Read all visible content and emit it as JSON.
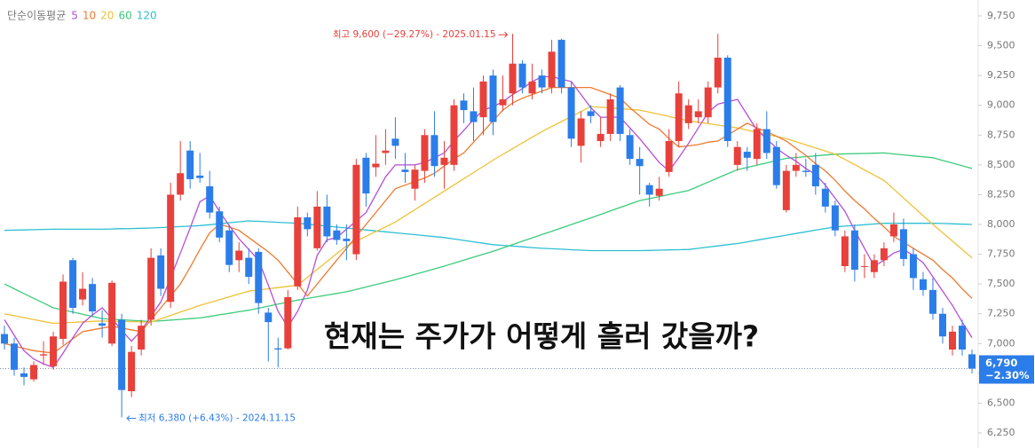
{
  "chart_data": {
    "type": "candlestick",
    "legend_title": "단순이동평균",
    "up_color": "#e8403b",
    "down_color": "#2b7de9",
    "open": [
      7080,
      7000,
      6750,
      6700,
      6900,
      6810,
      7040,
      7700,
      7370,
      7500,
      7170,
      7000,
      7200,
      6600,
      6950,
      7200,
      7740,
      7350,
      8250,
      8620,
      8410,
      8320,
      8110,
      7950,
      7700,
      7720,
      7770,
      7260,
      6960,
      6960,
      7480,
      8060,
      7800,
      8150,
      7950,
      7880,
      7750,
      8560,
      8480,
      8600,
      8720,
      8460,
      8300,
      8450,
      8750,
      8500,
      8500,
      9040,
      8950,
      8900,
      9250,
      9000,
      9100,
      9350,
      9100,
      9250,
      9150,
      9550,
      9150,
      8660,
      8950,
      8700,
      8760,
      9150,
      8750,
      8550,
      8330,
      8240,
      8440,
      8700,
      8850,
      8900,
      8900,
      9150,
      9400,
      8500,
      8610,
      8550,
      8800,
      8650,
      8120,
      8450,
      8450,
      8500,
      8300,
      8160,
      7650,
      7950,
      7650,
      7600,
      7700,
      7900,
      7960,
      7750,
      7540,
      7450,
      7250,
      6950,
      7150,
      6910
    ],
    "high": [
      7150,
      7050,
      6800,
      6850,
      7020,
      7100,
      7580,
      7720,
      7600,
      7550,
      7280,
      7530,
      7250,
      6980,
      7200,
      7800,
      7800,
      8350,
      8700,
      8700,
      8600,
      8450,
      8150,
      8000,
      7850,
      7800,
      7800,
      7300,
      7050,
      7450,
      8150,
      8100,
      8280,
      8250,
      8000,
      8000,
      8550,
      8600,
      8750,
      8800,
      8900,
      8600,
      8500,
      8800,
      8950,
      8700,
      9050,
      9100,
      9150,
      9250,
      9300,
      9250,
      9600,
      9380,
      9350,
      9300,
      9550,
      9560,
      9200,
      8950,
      9000,
      8900,
      9100,
      9170,
      8800,
      8650,
      8350,
      8400,
      8800,
      9200,
      9050,
      9050,
      9200,
      9600,
      9420,
      8700,
      8650,
      8850,
      8950,
      8700,
      8500,
      8600,
      8550,
      8600,
      8350,
      8200,
      7950,
      8000,
      7750,
      7750,
      7850,
      8100,
      8050,
      7800,
      7600,
      7550,
      7300,
      7150,
      7200,
      6950
    ],
    "low": [
      6950,
      6730,
      6650,
      6680,
      6820,
      6780,
      6990,
      7250,
      7320,
      7230,
      7050,
      6980,
      6380,
      6550,
      6900,
      7150,
      7400,
      7300,
      8200,
      8300,
      8350,
      8050,
      7850,
      7600,
      7600,
      7500,
      7250,
      6850,
      6800,
      6950,
      7450,
      7900,
      7780,
      7850,
      7830,
      7700,
      7700,
      8150,
      8400,
      8500,
      8550,
      8350,
      8200,
      8350,
      8400,
      8300,
      8450,
      8850,
      8700,
      8750,
      8750,
      8950,
      9000,
      9100,
      9050,
      9100,
      9100,
      9100,
      8650,
      8520,
      8850,
      8650,
      8700,
      8700,
      8500,
      8250,
      8150,
      8200,
      8400,
      8650,
      8800,
      8850,
      8850,
      9100,
      8650,
      8450,
      8450,
      8500,
      8550,
      8300,
      8100,
      8400,
      8400,
      8250,
      8100,
      7900,
      7600,
      7520,
      7550,
      7550,
      7650,
      7850,
      7650,
      7450,
      7400,
      7200,
      7000,
      6900,
      6900,
      6750
    ],
    "close": [
      7000,
      6780,
      6720,
      6820,
      6910,
      7060,
      7520,
      7300,
      7460,
      7270,
      7150,
      7510,
      6610,
      6930,
      7150,
      7720,
      7460,
      8250,
      8430,
      8380,
      8390,
      8100,
      7890,
      7660,
      7780,
      7560,
      7340,
      7180,
      6950,
      7390,
      8060,
      7960,
      8150,
      7900,
      7870,
      7860,
      8500,
      8260,
      8510,
      8620,
      8660,
      8440,
      8460,
      8750,
      8490,
      8560,
      9000,
      8960,
      8860,
      9200,
      8860,
      9050,
      9350,
      9150,
      9200,
      9150,
      9450,
      9150,
      8720,
      8890,
      8910,
      8760,
      9050,
      8760,
      8550,
      8490,
      8250,
      8300,
      8700,
      9100,
      9000,
      8950,
      9150,
      9400,
      8700,
      8650,
      8560,
      8800,
      8600,
      8330,
      8450,
      8500,
      8440,
      8320,
      8150,
      7950,
      7900,
      7620,
      7650,
      7700,
      7800,
      8000,
      7710,
      7550,
      7450,
      7250,
      7060,
      7100,
      6950,
      6790
    ],
    "series": [
      {
        "name": "5",
        "color": "#b44fd6",
        "values": [
          7200,
          7070,
          6940,
          6870,
          6830,
          6800,
          6920,
          7050,
          7170,
          7240,
          7300,
          7210,
          7110,
          7020,
          7110,
          7230,
          7350,
          7550,
          7760,
          7970,
          8190,
          8240,
          8110,
          7990,
          7880,
          7790,
          7700,
          7490,
          7270,
          7140,
          7270,
          7450,
          7740,
          7870,
          7890,
          7960,
          8030,
          8100,
          8250,
          8400,
          8500,
          8500,
          8500,
          8520,
          8560,
          8600,
          8700,
          8790,
          8880,
          8960,
          8990,
          9030,
          9090,
          9140,
          9200,
          9240,
          9240,
          9220,
          9200,
          9090,
          8980,
          8900,
          8900,
          8900,
          8810,
          8720,
          8620,
          8520,
          8450,
          8560,
          8680,
          8810,
          8940,
          9010,
          9030,
          9050,
          8920,
          8790,
          8720,
          8640,
          8580,
          8530,
          8470,
          8420,
          8330,
          8220,
          8110,
          7950,
          7800,
          7650,
          7700,
          7760,
          7790,
          7740,
          7680,
          7560,
          7440,
          7320,
          7180,
          7050
        ]
      },
      {
        "name": "10",
        "color": "#ee7a30",
        "values": [
          7000,
          6980,
          6960,
          6940,
          6930,
          6920,
          6980,
          7040,
          7100,
          7115,
          7130,
          7145,
          7130,
          7115,
          7100,
          7200,
          7300,
          7400,
          7500,
          7640,
          7790,
          7930,
          8000,
          7980,
          7950,
          7890,
          7830,
          7770,
          7700,
          7600,
          7500,
          7400,
          7500,
          7600,
          7700,
          7800,
          7900,
          8000,
          8100,
          8200,
          8300,
          8330,
          8360,
          8390,
          8430,
          8490,
          8550,
          8600,
          8690,
          8780,
          8870,
          8960,
          9020,
          9060,
          9090,
          9120,
          9150,
          9150,
          9150,
          9150,
          9150,
          9120,
          9090,
          9060,
          8980,
          8910,
          8840,
          8800,
          8720,
          8650,
          8660,
          8670,
          8690,
          8700,
          8750,
          8800,
          8850,
          8810,
          8780,
          8740,
          8700,
          8640,
          8580,
          8510,
          8450,
          8370,
          8280,
          8200,
          8130,
          8050,
          7980,
          7900,
          7850,
          7800,
          7750,
          7700,
          7620,
          7550,
          7460,
          7380
        ]
      },
      {
        "name": "20",
        "color": "#ecc238",
        "values": [
          7250,
          7234,
          7218,
          7202,
          7186,
          7170,
          7174,
          7178,
          7182,
          7186,
          7190,
          7188,
          7186,
          7184,
          7182,
          7180,
          7208,
          7236,
          7264,
          7292,
          7320,
          7344,
          7368,
          7392,
          7416,
          7440,
          7450,
          7460,
          7470,
          7480,
          7490,
          7556,
          7622,
          7688,
          7754,
          7820,
          7860,
          7900,
          7940,
          7980,
          8020,
          8072,
          8124,
          8176,
          8228,
          8280,
          8332,
          8384,
          8436,
          8488,
          8540,
          8588,
          8636,
          8684,
          8732,
          8780,
          8822,
          8864,
          8906,
          8948,
          8990,
          8984,
          8978,
          8972,
          8966,
          8960,
          8942,
          8924,
          8906,
          8888,
          8870,
          8858,
          8846,
          8834,
          8822,
          8810,
          8792,
          8774,
          8756,
          8738,
          8720,
          8694,
          8668,
          8642,
          8616,
          8590,
          8546,
          8502,
          8458,
          8414,
          8370,
          8296,
          8222,
          8148,
          8074,
          8000,
          7930,
          7860,
          7790,
          7720
        ]
      },
      {
        "name": "60",
        "color": "#3ccb7c",
        "values": [
          7500,
          7460,
          7420,
          7380,
          7340,
          7300,
          7282,
          7264,
          7246,
          7228,
          7210,
          7205,
          7200,
          7195,
          7190,
          7185,
          7191,
          7197,
          7203,
          7209,
          7215,
          7228,
          7241,
          7254,
          7267,
          7280,
          7297,
          7314,
          7331,
          7348,
          7365,
          7379,
          7393,
          7407,
          7421,
          7435,
          7455,
          7475,
          7495,
          7515,
          7535,
          7558,
          7581,
          7604,
          7627,
          7650,
          7675,
          7700,
          7725,
          7750,
          7775,
          7803,
          7831,
          7859,
          7887,
          7915,
          7943,
          7971,
          7999,
          8027,
          8055,
          8084,
          8113,
          8142,
          8171,
          8200,
          8217,
          8234,
          8251,
          8268,
          8285,
          8320,
          8355,
          8390,
          8425,
          8460,
          8479,
          8498,
          8517,
          8536,
          8555,
          8562,
          8569,
          8576,
          8583,
          8590,
          8592,
          8594,
          8596,
          8598,
          8600,
          8592,
          8584,
          8576,
          8568,
          8560,
          8537,
          8515,
          8492,
          8470
        ]
      },
      {
        "name": "120",
        "color": "#2dbfd2",
        "values": [
          7950,
          7952,
          7954,
          7956,
          7958,
          7960,
          7960,
          7960,
          7960,
          7960,
          7960,
          7962,
          7964,
          7966,
          7968,
          7970,
          7974,
          7978,
          7982,
          7986,
          7990,
          7998,
          8006,
          8014,
          8022,
          8030,
          8026,
          8022,
          8018,
          8014,
          8010,
          8002,
          7994,
          7986,
          7978,
          7970,
          7962,
          7954,
          7946,
          7938,
          7930,
          7922,
          7914,
          7906,
          7898,
          7890,
          7878,
          7866,
          7854,
          7842,
          7830,
          7824,
          7818,
          7812,
          7806,
          7800,
          7796,
          7792,
          7788,
          7784,
          7780,
          7780,
          7780,
          7780,
          7780,
          7780,
          7782,
          7784,
          7786,
          7788,
          7790,
          7800,
          7810,
          7820,
          7830,
          7840,
          7854,
          7868,
          7882,
          7896,
          7910,
          7924,
          7938,
          7952,
          7966,
          7980,
          7986,
          7992,
          7998,
          8004,
          8010,
          8010,
          8010,
          8010,
          8010,
          8010,
          8008,
          8005,
          8002,
          8000
        ]
      }
    ],
    "ylim": [
      6250,
      9750
    ],
    "yticks": [
      {
        "value": 6250,
        "label": "6,250"
      },
      {
        "value": 6500,
        "label": "6,500"
      },
      {
        "value": 6750,
        "label": "6,750"
      },
      {
        "value": 7000,
        "label": "7,000"
      },
      {
        "value": 7250,
        "label": "7,250"
      },
      {
        "value": 7500,
        "label": "7,500"
      },
      {
        "value": 7750,
        "label": "7,750"
      },
      {
        "value": 8000,
        "label": "8,000"
      },
      {
        "value": 8250,
        "label": "8,250"
      },
      {
        "value": 8500,
        "label": "8,500"
      },
      {
        "value": 8750,
        "label": "8,750"
      },
      {
        "value": 9000,
        "label": "9,000"
      },
      {
        "value": 9250,
        "label": "9,250"
      },
      {
        "value": 9500,
        "label": "9,500"
      },
      {
        "value": 9750,
        "label": "9,750"
      }
    ],
    "last_price": {
      "value": 6790,
      "label": "6,790"
    },
    "last_change": "−2.30%",
    "high_annotation": "최고 9,600 (−29.27%) - 2025.01.15",
    "low_annotation": "최저 6,380 (+6.43%) - 2024.11.15",
    "overlay_title": "현재는 주가가 어떻게 흘러 갔을까?"
  }
}
